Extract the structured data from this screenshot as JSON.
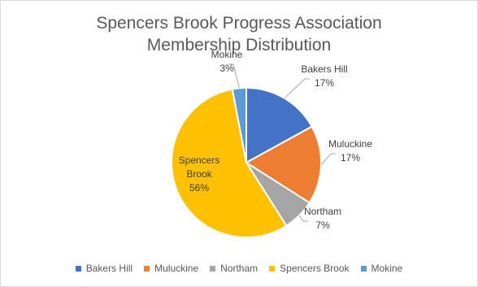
{
  "chart_data": {
    "type": "pie",
    "title_lines": [
      "Spencers Brook Progress Association",
      "Membership Distribution"
    ],
    "categories": [
      "Bakers Hill",
      "Muluckine",
      "Northam",
      "Spencers Brook",
      "Mokine"
    ],
    "values": [
      17,
      17,
      7,
      56,
      3
    ],
    "value_labels": [
      "17%",
      "17%",
      "7%",
      "56%",
      "3%"
    ],
    "colors": [
      "#4472C4",
      "#ED7D31",
      "#A5A5A5",
      "#FFC000",
      "#5B9BD5"
    ],
    "label_placement": [
      "outside",
      "outside",
      "outside",
      "inside",
      "outside"
    ],
    "legend_position": "bottom"
  }
}
